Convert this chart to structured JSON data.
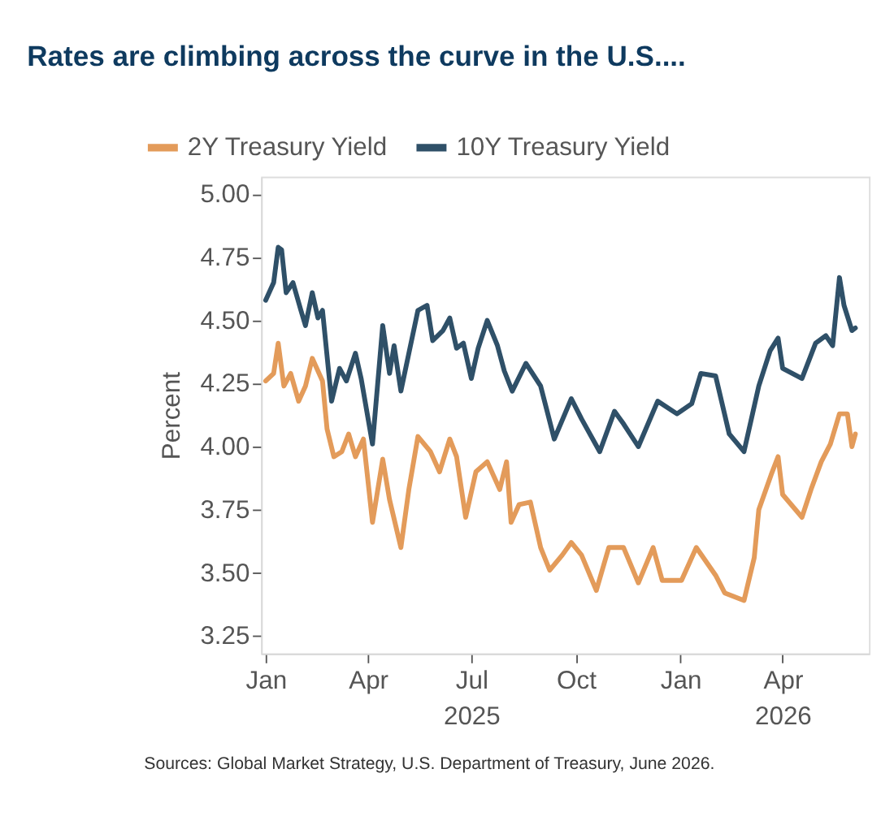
{
  "chart_data": {
    "type": "line",
    "title": "Rates are climbing across the curve in the U.S....",
    "ylabel": "Percent",
    "annotations": [
      "Sources: Global Market Strategy, U.S. Department of Treasury, June 2026."
    ],
    "xlim": [
      "2024-12-28",
      "2026-06-16"
    ],
    "xticks": [
      {
        "value": "2025-01-01",
        "label": "Jan"
      },
      {
        "value": "2025-04-01",
        "label": "Apr"
      },
      {
        "value": "2025-07-01",
        "label": "Jul\n2025"
      },
      {
        "value": "2025-10-01",
        "label": "Oct"
      },
      {
        "value": "2026-01-01",
        "label": "Jan"
      },
      {
        "value": "2026-04-01",
        "label": "Apr\n2026"
      }
    ],
    "ylim": [
      3.18,
      5.07
    ],
    "yticks": [
      {
        "value": 3.25,
        "label": "3.25"
      },
      {
        "value": 3.5,
        "label": "3.50"
      },
      {
        "value": 3.75,
        "label": "3.75"
      },
      {
        "value": 4.0,
        "label": "4.00"
      },
      {
        "value": 4.25,
        "label": "4.25"
      },
      {
        "value": 4.5,
        "label": "4.50"
      },
      {
        "value": 4.75,
        "label": "4.75"
      },
      {
        "value": 5.0,
        "label": "5.00"
      }
    ],
    "grid": false,
    "legend": "top left",
    "marker": "none",
    "line_style": "solid",
    "series": [
      {
        "name": "2Y Treasury Yield",
        "color": "#e39b5a",
        "x": [
          "2025-01-01",
          "2025-01-08",
          "2025-01-12",
          "2025-01-17",
          "2025-01-23",
          "2025-01-30",
          "2025-02-05",
          "2025-02-11",
          "2025-02-20",
          "2025-02-24",
          "2025-03-02",
          "2025-03-09",
          "2025-03-15",
          "2025-03-21",
          "2025-03-28",
          "2025-04-05",
          "2025-04-14",
          "2025-04-20",
          "2025-04-30",
          "2025-05-07",
          "2025-05-15",
          "2025-05-26",
          "2025-06-03",
          "2025-06-12",
          "2025-06-18",
          "2025-06-26",
          "2025-07-05",
          "2025-07-15",
          "2025-07-26",
          "2025-08-01",
          "2025-08-05",
          "2025-08-12",
          "2025-08-22",
          "2025-08-31",
          "2025-09-08",
          "2025-09-19",
          "2025-09-27",
          "2025-10-06",
          "2025-10-19",
          "2025-10-30",
          "2025-11-12",
          "2025-11-25",
          "2025-12-08",
          "2025-12-16",
          "2026-01-02",
          "2026-01-15",
          "2026-02-01",
          "2026-02-09",
          "2026-02-26",
          "2026-03-07",
          "2026-03-11",
          "2026-03-22",
          "2026-03-28",
          "2026-04-01",
          "2026-04-18",
          "2026-04-26",
          "2026-05-05",
          "2026-05-13",
          "2026-05-21",
          "2026-05-28",
          "2026-06-01",
          "2026-06-04"
        ],
        "values": [
          4.26,
          4.29,
          4.41,
          4.24,
          4.29,
          4.18,
          4.24,
          4.35,
          4.26,
          4.07,
          3.96,
          3.98,
          4.05,
          3.96,
          4.03,
          3.7,
          3.95,
          3.79,
          3.6,
          3.83,
          4.04,
          3.98,
          3.9,
          4.03,
          3.96,
          3.72,
          3.9,
          3.94,
          3.83,
          3.94,
          3.7,
          3.77,
          3.78,
          3.6,
          3.51,
          3.57,
          3.62,
          3.57,
          3.43,
          3.6,
          3.6,
          3.46,
          3.6,
          3.47,
          3.47,
          3.6,
          3.49,
          3.42,
          3.39,
          3.56,
          3.75,
          3.89,
          3.96,
          3.81,
          3.72,
          3.83,
          3.94,
          4.01,
          4.13,
          4.13,
          4.0,
          4.05
        ]
      },
      {
        "name": "10Y Treasury Yield",
        "color": "#2f5068",
        "x": [
          "2025-01-01",
          "2025-01-08",
          "2025-01-12",
          "2025-01-15",
          "2025-01-19",
          "2025-01-25",
          "2025-02-01",
          "2025-02-05",
          "2025-02-11",
          "2025-02-16",
          "2025-02-20",
          "2025-02-28",
          "2025-03-07",
          "2025-03-13",
          "2025-03-21",
          "2025-03-26",
          "2025-04-05",
          "2025-04-14",
          "2025-04-20",
          "2025-04-24",
          "2025-04-30",
          "2025-05-07",
          "2025-05-15",
          "2025-05-23",
          "2025-05-28",
          "2025-06-06",
          "2025-06-12",
          "2025-06-18",
          "2025-06-24",
          "2025-07-01",
          "2025-07-07",
          "2025-07-15",
          "2025-07-24",
          "2025-07-30",
          "2025-08-06",
          "2025-08-18",
          "2025-08-31",
          "2025-09-12",
          "2025-09-27",
          "2025-10-06",
          "2025-10-22",
          "2025-11-04",
          "2025-11-12",
          "2025-11-25",
          "2025-12-12",
          "2025-12-29",
          "2026-01-11",
          "2026-01-19",
          "2026-02-01",
          "2026-02-13",
          "2026-02-26",
          "2026-03-11",
          "2026-03-21",
          "2026-03-28",
          "2026-04-01",
          "2026-04-18",
          "2026-04-30",
          "2026-05-09",
          "2026-05-15",
          "2026-05-21",
          "2026-05-25",
          "2026-06-01",
          "2026-06-04"
        ],
        "values": [
          4.58,
          4.65,
          4.79,
          4.78,
          4.61,
          4.65,
          4.54,
          4.48,
          4.61,
          4.51,
          4.54,
          4.18,
          4.31,
          4.26,
          4.37,
          4.27,
          4.01,
          4.48,
          4.29,
          4.4,
          4.22,
          4.37,
          4.54,
          4.56,
          4.42,
          4.46,
          4.51,
          4.39,
          4.41,
          4.27,
          4.39,
          4.5,
          4.4,
          4.3,
          4.22,
          4.33,
          4.24,
          4.03,
          4.19,
          4.11,
          3.98,
          4.14,
          4.09,
          4.0,
          4.18,
          4.13,
          4.17,
          4.29,
          4.28,
          4.05,
          3.98,
          4.24,
          4.38,
          4.43,
          4.31,
          4.27,
          4.41,
          4.44,
          4.4,
          4.67,
          4.56,
          4.46,
          4.47
        ]
      }
    ]
  }
}
